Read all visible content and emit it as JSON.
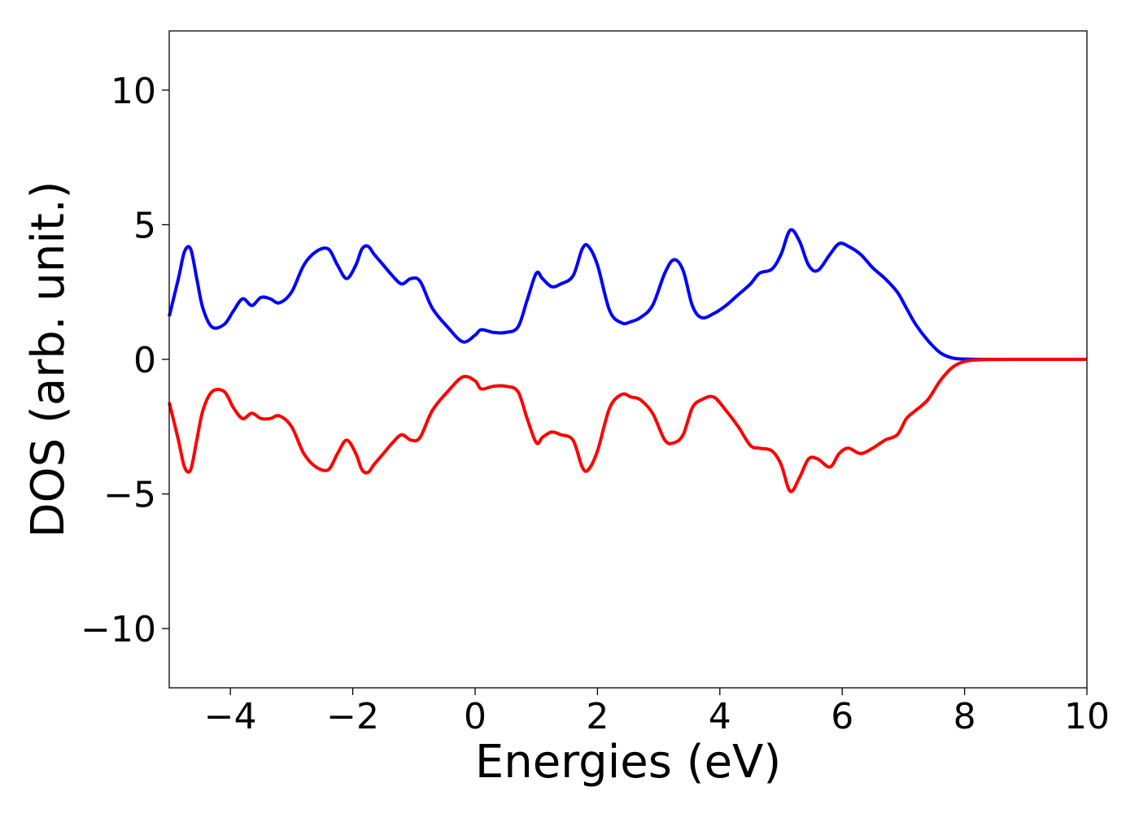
{
  "chart_data": {
    "type": "line",
    "title": "",
    "xlabel": "Energies (eV)",
    "ylabel": "DOS (arb. unit.)",
    "xlim": [
      -5,
      10
    ],
    "ylim": [
      -12.2,
      12.2
    ],
    "grid": false,
    "legend": "none",
    "x_ticks": [
      -4,
      -2,
      0,
      2,
      4,
      6,
      8,
      10
    ],
    "y_ticks": [
      -10,
      -5,
      0,
      5,
      10
    ],
    "x_tick_labels": [
      "−4",
      "−2",
      "0",
      "2",
      "4",
      "6",
      "8",
      "10"
    ],
    "y_tick_labels": [
      "−10",
      "−5",
      "0",
      "5",
      "10"
    ],
    "series": [
      {
        "color": "#0000ff",
        "x": [
          -5.0,
          -4.85,
          -4.75,
          -4.65,
          -4.55,
          -4.45,
          -4.3,
          -4.1,
          -3.95,
          -3.8,
          -3.65,
          -3.5,
          -3.35,
          -3.2,
          -3.0,
          -2.8,
          -2.6,
          -2.4,
          -2.25,
          -2.1,
          -1.95,
          -1.85,
          -1.75,
          -1.65,
          -1.5,
          -1.35,
          -1.2,
          -1.05,
          -0.9,
          -0.7,
          -0.45,
          -0.2,
          0.0,
          0.1,
          0.3,
          0.5,
          0.7,
          0.85,
          1.0,
          1.1,
          1.25,
          1.4,
          1.6,
          1.75,
          1.85,
          2.0,
          2.2,
          2.4,
          2.55,
          2.7,
          2.9,
          3.1,
          3.25,
          3.4,
          3.55,
          3.7,
          3.9,
          4.1,
          4.3,
          4.5,
          4.65,
          4.85,
          5.0,
          5.15,
          5.3,
          5.45,
          5.6,
          5.8,
          5.95,
          6.1,
          6.3,
          6.5,
          6.7,
          6.9,
          7.05,
          7.2,
          7.4,
          7.6,
          7.8,
          8.0,
          8.3,
          9.0,
          10.0
        ],
        "y": [
          1.6,
          3.0,
          4.0,
          4.1,
          3.0,
          1.9,
          1.2,
          1.3,
          1.8,
          2.25,
          2.0,
          2.3,
          2.25,
          2.1,
          2.5,
          3.5,
          4.0,
          4.1,
          3.5,
          3.0,
          3.5,
          4.1,
          4.2,
          3.9,
          3.5,
          3.1,
          2.8,
          3.0,
          2.9,
          1.9,
          1.2,
          0.65,
          0.9,
          1.1,
          1.0,
          1.0,
          1.2,
          2.2,
          3.2,
          3.0,
          2.7,
          2.8,
          3.1,
          4.1,
          4.2,
          3.5,
          1.8,
          1.35,
          1.4,
          1.55,
          2.0,
          3.2,
          3.7,
          3.3,
          2.0,
          1.55,
          1.7,
          2.0,
          2.4,
          2.8,
          3.2,
          3.35,
          3.9,
          4.8,
          4.4,
          3.5,
          3.3,
          3.9,
          4.3,
          4.2,
          3.9,
          3.4,
          3.0,
          2.5,
          1.9,
          1.3,
          0.7,
          0.25,
          0.05,
          0.01,
          0.0,
          0.0,
          0.0
        ]
      },
      {
        "color": "#ff0000",
        "x": [
          -5.0,
          -4.85,
          -4.75,
          -4.65,
          -4.55,
          -4.45,
          -4.3,
          -4.1,
          -3.95,
          -3.8,
          -3.65,
          -3.5,
          -3.35,
          -3.2,
          -3.0,
          -2.8,
          -2.6,
          -2.4,
          -2.25,
          -2.1,
          -1.95,
          -1.85,
          -1.75,
          -1.65,
          -1.5,
          -1.35,
          -1.2,
          -1.05,
          -0.9,
          -0.7,
          -0.45,
          -0.2,
          0.0,
          0.1,
          0.3,
          0.5,
          0.7,
          0.85,
          1.0,
          1.1,
          1.25,
          1.4,
          1.6,
          1.75,
          1.85,
          2.0,
          2.2,
          2.4,
          2.55,
          2.7,
          2.9,
          3.1,
          3.25,
          3.4,
          3.55,
          3.7,
          3.9,
          4.1,
          4.3,
          4.5,
          4.65,
          4.85,
          5.0,
          5.15,
          5.3,
          5.45,
          5.6,
          5.8,
          5.95,
          6.1,
          6.3,
          6.5,
          6.7,
          6.9,
          7.05,
          7.2,
          7.4,
          7.6,
          7.8,
          8.0,
          8.3,
          9.0,
          10.0
        ],
        "y": [
          -1.6,
          -3.0,
          -4.0,
          -4.1,
          -3.0,
          -1.9,
          -1.2,
          -1.2,
          -1.8,
          -2.2,
          -2.0,
          -2.2,
          -2.2,
          -2.1,
          -2.5,
          -3.5,
          -4.0,
          -4.1,
          -3.5,
          -3.0,
          -3.5,
          -4.1,
          -4.2,
          -3.9,
          -3.5,
          -3.1,
          -2.8,
          -3.0,
          -2.9,
          -1.9,
          -1.2,
          -0.65,
          -0.8,
          -1.1,
          -1.0,
          -1.0,
          -1.2,
          -2.2,
          -3.1,
          -2.9,
          -2.7,
          -2.8,
          -3.0,
          -4.0,
          -4.1,
          -3.4,
          -1.8,
          -1.3,
          -1.4,
          -1.5,
          -2.0,
          -3.0,
          -3.1,
          -2.8,
          -1.8,
          -1.5,
          -1.4,
          -1.9,
          -2.5,
          -3.2,
          -3.3,
          -3.4,
          -3.9,
          -4.9,
          -4.4,
          -3.7,
          -3.7,
          -4.0,
          -3.5,
          -3.3,
          -3.5,
          -3.3,
          -3.0,
          -2.8,
          -2.2,
          -1.9,
          -1.5,
          -0.8,
          -0.3,
          -0.08,
          -0.01,
          0.0,
          0.0
        ]
      }
    ]
  }
}
